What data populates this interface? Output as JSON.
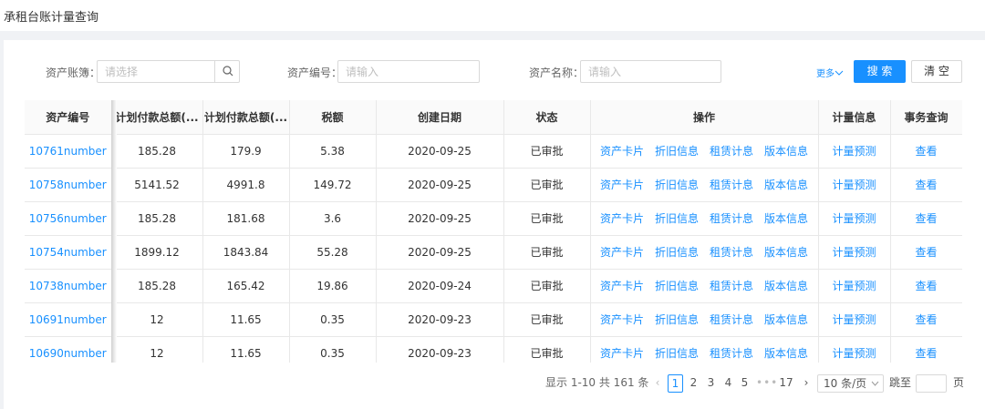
{
  "header": {
    "title": "承租台账计量查询"
  },
  "filters": [
    {
      "label": "资产账簿：",
      "placeholder": "请选择"
    },
    {
      "label": "资产编号：",
      "placeholder": "请输入"
    },
    {
      "label": "资产名称：",
      "placeholder": "请输入"
    }
  ],
  "more": "更多",
  "buttons": [
    "搜 索",
    "清 空"
  ],
  "table": {
    "columns": [
      "资产编号",
      "计划付款总额(...",
      "计划付款总额(...",
      "税额",
      "创建日期",
      "状态",
      "操作",
      "计量信息",
      "事务查询"
    ],
    "row_actions": [
      "资产卡片",
      "折旧信息",
      "租赁计息",
      "版本信息"
    ],
    "rows": [
      [
        "10761number",
        185.28,
        179.9,
        5.38,
        "2020-09-25",
        "已审批",
        "计量预测",
        "查看"
      ],
      [
        "10758number",
        5141.52,
        4991.8,
        149.72,
        "2020-09-25",
        "已审批",
        "计量预测",
        "查看"
      ],
      [
        "10756number",
        185.28,
        181.68,
        3.6,
        "2020-09-25",
        "已审批",
        "计量预测",
        "查看"
      ],
      [
        "10754number",
        1899.12,
        1843.84,
        55.28,
        "2020-09-25",
        "已审批",
        "计量预测",
        "查看"
      ],
      [
        "10738number",
        185.28,
        165.42,
        19.86,
        "2020-09-24",
        "已审批",
        "计量预测",
        "查看"
      ],
      [
        "10691number",
        12,
        11.65,
        0.35,
        "2020-09-23",
        "已审批",
        "计量预测",
        "查看"
      ],
      [
        "10690number",
        12,
        11.65,
        0.35,
        "2020-09-23",
        "已审批",
        "计量预测",
        "查看"
      ]
    ]
  },
  "pagination": {
    "summary": "显示 1-10 共 161 条",
    "pages": [
      1,
      2,
      3,
      4,
      5,
      17
    ],
    "page_size": "10 条/页",
    "jump_label": "跳至",
    "page_unit": "页"
  }
}
